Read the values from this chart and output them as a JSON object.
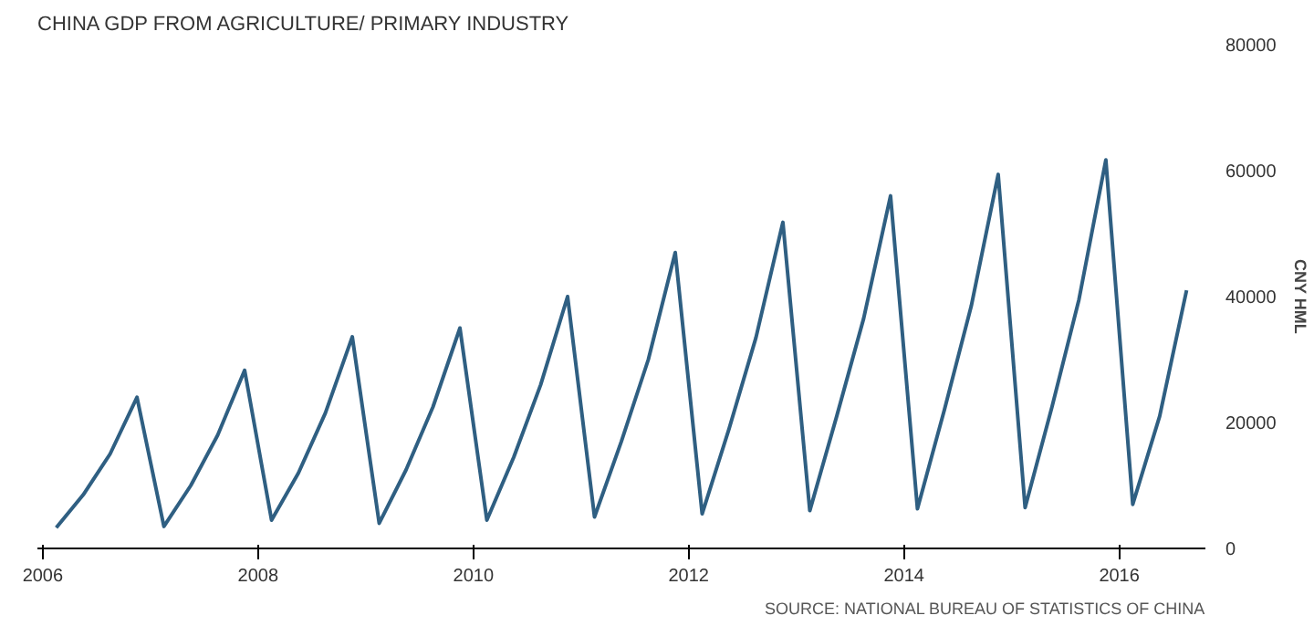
{
  "chart_data": {
    "type": "line",
    "title": "CHINA GDP FROM AGRICULTURE/ PRIMARY INDUSTRY",
    "ylabel": "CNY HML",
    "annotations": [
      "SOURCE: NATIONAL BUREAU OF STATISTICS OF CHINA"
    ],
    "x": [
      2006.125,
      2006.375,
      2006.625,
      2006.875,
      2007.125,
      2007.375,
      2007.625,
      2007.875,
      2008.125,
      2008.375,
      2008.625,
      2008.875,
      2009.125,
      2009.375,
      2009.625,
      2009.875,
      2010.125,
      2010.375,
      2010.625,
      2010.875,
      2011.125,
      2011.375,
      2011.625,
      2011.875,
      2012.125,
      2012.375,
      2012.625,
      2012.875,
      2013.125,
      2013.375,
      2013.625,
      2013.875,
      2014.125,
      2014.375,
      2014.625,
      2014.875,
      2015.125,
      2015.375,
      2015.625,
      2015.875,
      2016.125,
      2016.375,
      2016.625
    ],
    "series": [
      {
        "color": "#2f5f82",
        "values": [
          3300,
          8500,
          15000,
          24000,
          3500,
          10000,
          18000,
          28300,
          4500,
          12000,
          21500,
          33600,
          4000,
          12500,
          22500,
          35000,
          4500,
          14500,
          26000,
          40000,
          5000,
          17000,
          30000,
          47000,
          5500,
          19000,
          33500,
          51800,
          6000,
          21000,
          36500,
          56000,
          6300,
          22000,
          38500,
          59400,
          6500,
          22500,
          39500,
          61700,
          7000,
          21000,
          41000
        ]
      }
    ],
    "xlim": [
      2005.95,
      2016.8
    ],
    "ylim": [
      0,
      80000
    ],
    "xticks": [
      2006,
      2008,
      2010,
      2012,
      2014,
      2016
    ],
    "yticks": [
      0,
      20000,
      40000,
      60000,
      80000
    ],
    "grid": false,
    "marker": "none",
    "line_style": "solid"
  }
}
